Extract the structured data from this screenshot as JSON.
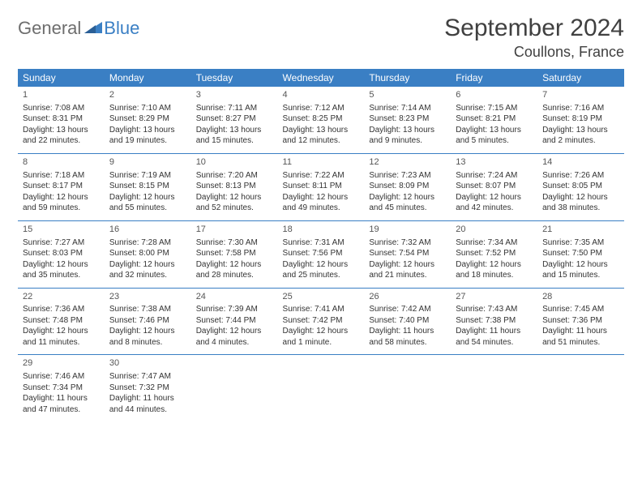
{
  "brand": {
    "general": "General",
    "blue": "Blue"
  },
  "title": "September 2024",
  "location": "Coullons, France",
  "colors": {
    "header_bg": "#3a7fc4",
    "header_text": "#ffffff",
    "rule": "#3a7fc4",
    "body_text": "#333333",
    "logo_gray": "#6e6e6e",
    "logo_blue": "#3a7fc4",
    "page_bg": "#ffffff"
  },
  "typography": {
    "title_fontsize": 30,
    "location_fontsize": 18,
    "dayheader_fontsize": 12,
    "cell_fontsize": 10,
    "logo_fontsize": 22
  },
  "layout": {
    "columns": 7,
    "rows": 5
  },
  "day_headers": [
    "Sunday",
    "Monday",
    "Tuesday",
    "Wednesday",
    "Thursday",
    "Friday",
    "Saturday"
  ],
  "weeks": [
    [
      {
        "n": "1",
        "sr": "Sunrise: 7:08 AM",
        "ss": "Sunset: 8:31 PM",
        "dl": "Daylight: 13 hours and 22 minutes."
      },
      {
        "n": "2",
        "sr": "Sunrise: 7:10 AM",
        "ss": "Sunset: 8:29 PM",
        "dl": "Daylight: 13 hours and 19 minutes."
      },
      {
        "n": "3",
        "sr": "Sunrise: 7:11 AM",
        "ss": "Sunset: 8:27 PM",
        "dl": "Daylight: 13 hours and 15 minutes."
      },
      {
        "n": "4",
        "sr": "Sunrise: 7:12 AM",
        "ss": "Sunset: 8:25 PM",
        "dl": "Daylight: 13 hours and 12 minutes."
      },
      {
        "n": "5",
        "sr": "Sunrise: 7:14 AM",
        "ss": "Sunset: 8:23 PM",
        "dl": "Daylight: 13 hours and 9 minutes."
      },
      {
        "n": "6",
        "sr": "Sunrise: 7:15 AM",
        "ss": "Sunset: 8:21 PM",
        "dl": "Daylight: 13 hours and 5 minutes."
      },
      {
        "n": "7",
        "sr": "Sunrise: 7:16 AM",
        "ss": "Sunset: 8:19 PM",
        "dl": "Daylight: 13 hours and 2 minutes."
      }
    ],
    [
      {
        "n": "8",
        "sr": "Sunrise: 7:18 AM",
        "ss": "Sunset: 8:17 PM",
        "dl": "Daylight: 12 hours and 59 minutes."
      },
      {
        "n": "9",
        "sr": "Sunrise: 7:19 AM",
        "ss": "Sunset: 8:15 PM",
        "dl": "Daylight: 12 hours and 55 minutes."
      },
      {
        "n": "10",
        "sr": "Sunrise: 7:20 AM",
        "ss": "Sunset: 8:13 PM",
        "dl": "Daylight: 12 hours and 52 minutes."
      },
      {
        "n": "11",
        "sr": "Sunrise: 7:22 AM",
        "ss": "Sunset: 8:11 PM",
        "dl": "Daylight: 12 hours and 49 minutes."
      },
      {
        "n": "12",
        "sr": "Sunrise: 7:23 AM",
        "ss": "Sunset: 8:09 PM",
        "dl": "Daylight: 12 hours and 45 minutes."
      },
      {
        "n": "13",
        "sr": "Sunrise: 7:24 AM",
        "ss": "Sunset: 8:07 PM",
        "dl": "Daylight: 12 hours and 42 minutes."
      },
      {
        "n": "14",
        "sr": "Sunrise: 7:26 AM",
        "ss": "Sunset: 8:05 PM",
        "dl": "Daylight: 12 hours and 38 minutes."
      }
    ],
    [
      {
        "n": "15",
        "sr": "Sunrise: 7:27 AM",
        "ss": "Sunset: 8:03 PM",
        "dl": "Daylight: 12 hours and 35 minutes."
      },
      {
        "n": "16",
        "sr": "Sunrise: 7:28 AM",
        "ss": "Sunset: 8:00 PM",
        "dl": "Daylight: 12 hours and 32 minutes."
      },
      {
        "n": "17",
        "sr": "Sunrise: 7:30 AM",
        "ss": "Sunset: 7:58 PM",
        "dl": "Daylight: 12 hours and 28 minutes."
      },
      {
        "n": "18",
        "sr": "Sunrise: 7:31 AM",
        "ss": "Sunset: 7:56 PM",
        "dl": "Daylight: 12 hours and 25 minutes."
      },
      {
        "n": "19",
        "sr": "Sunrise: 7:32 AM",
        "ss": "Sunset: 7:54 PM",
        "dl": "Daylight: 12 hours and 21 minutes."
      },
      {
        "n": "20",
        "sr": "Sunrise: 7:34 AM",
        "ss": "Sunset: 7:52 PM",
        "dl": "Daylight: 12 hours and 18 minutes."
      },
      {
        "n": "21",
        "sr": "Sunrise: 7:35 AM",
        "ss": "Sunset: 7:50 PM",
        "dl": "Daylight: 12 hours and 15 minutes."
      }
    ],
    [
      {
        "n": "22",
        "sr": "Sunrise: 7:36 AM",
        "ss": "Sunset: 7:48 PM",
        "dl": "Daylight: 12 hours and 11 minutes."
      },
      {
        "n": "23",
        "sr": "Sunrise: 7:38 AM",
        "ss": "Sunset: 7:46 PM",
        "dl": "Daylight: 12 hours and 8 minutes."
      },
      {
        "n": "24",
        "sr": "Sunrise: 7:39 AM",
        "ss": "Sunset: 7:44 PM",
        "dl": "Daylight: 12 hours and 4 minutes."
      },
      {
        "n": "25",
        "sr": "Sunrise: 7:41 AM",
        "ss": "Sunset: 7:42 PM",
        "dl": "Daylight: 12 hours and 1 minute."
      },
      {
        "n": "26",
        "sr": "Sunrise: 7:42 AM",
        "ss": "Sunset: 7:40 PM",
        "dl": "Daylight: 11 hours and 58 minutes."
      },
      {
        "n": "27",
        "sr": "Sunrise: 7:43 AM",
        "ss": "Sunset: 7:38 PM",
        "dl": "Daylight: 11 hours and 54 minutes."
      },
      {
        "n": "28",
        "sr": "Sunrise: 7:45 AM",
        "ss": "Sunset: 7:36 PM",
        "dl": "Daylight: 11 hours and 51 minutes."
      }
    ],
    [
      {
        "n": "29",
        "sr": "Sunrise: 7:46 AM",
        "ss": "Sunset: 7:34 PM",
        "dl": "Daylight: 11 hours and 47 minutes."
      },
      {
        "n": "30",
        "sr": "Sunrise: 7:47 AM",
        "ss": "Sunset: 7:32 PM",
        "dl": "Daylight: 11 hours and 44 minutes."
      },
      null,
      null,
      null,
      null,
      null
    ]
  ]
}
